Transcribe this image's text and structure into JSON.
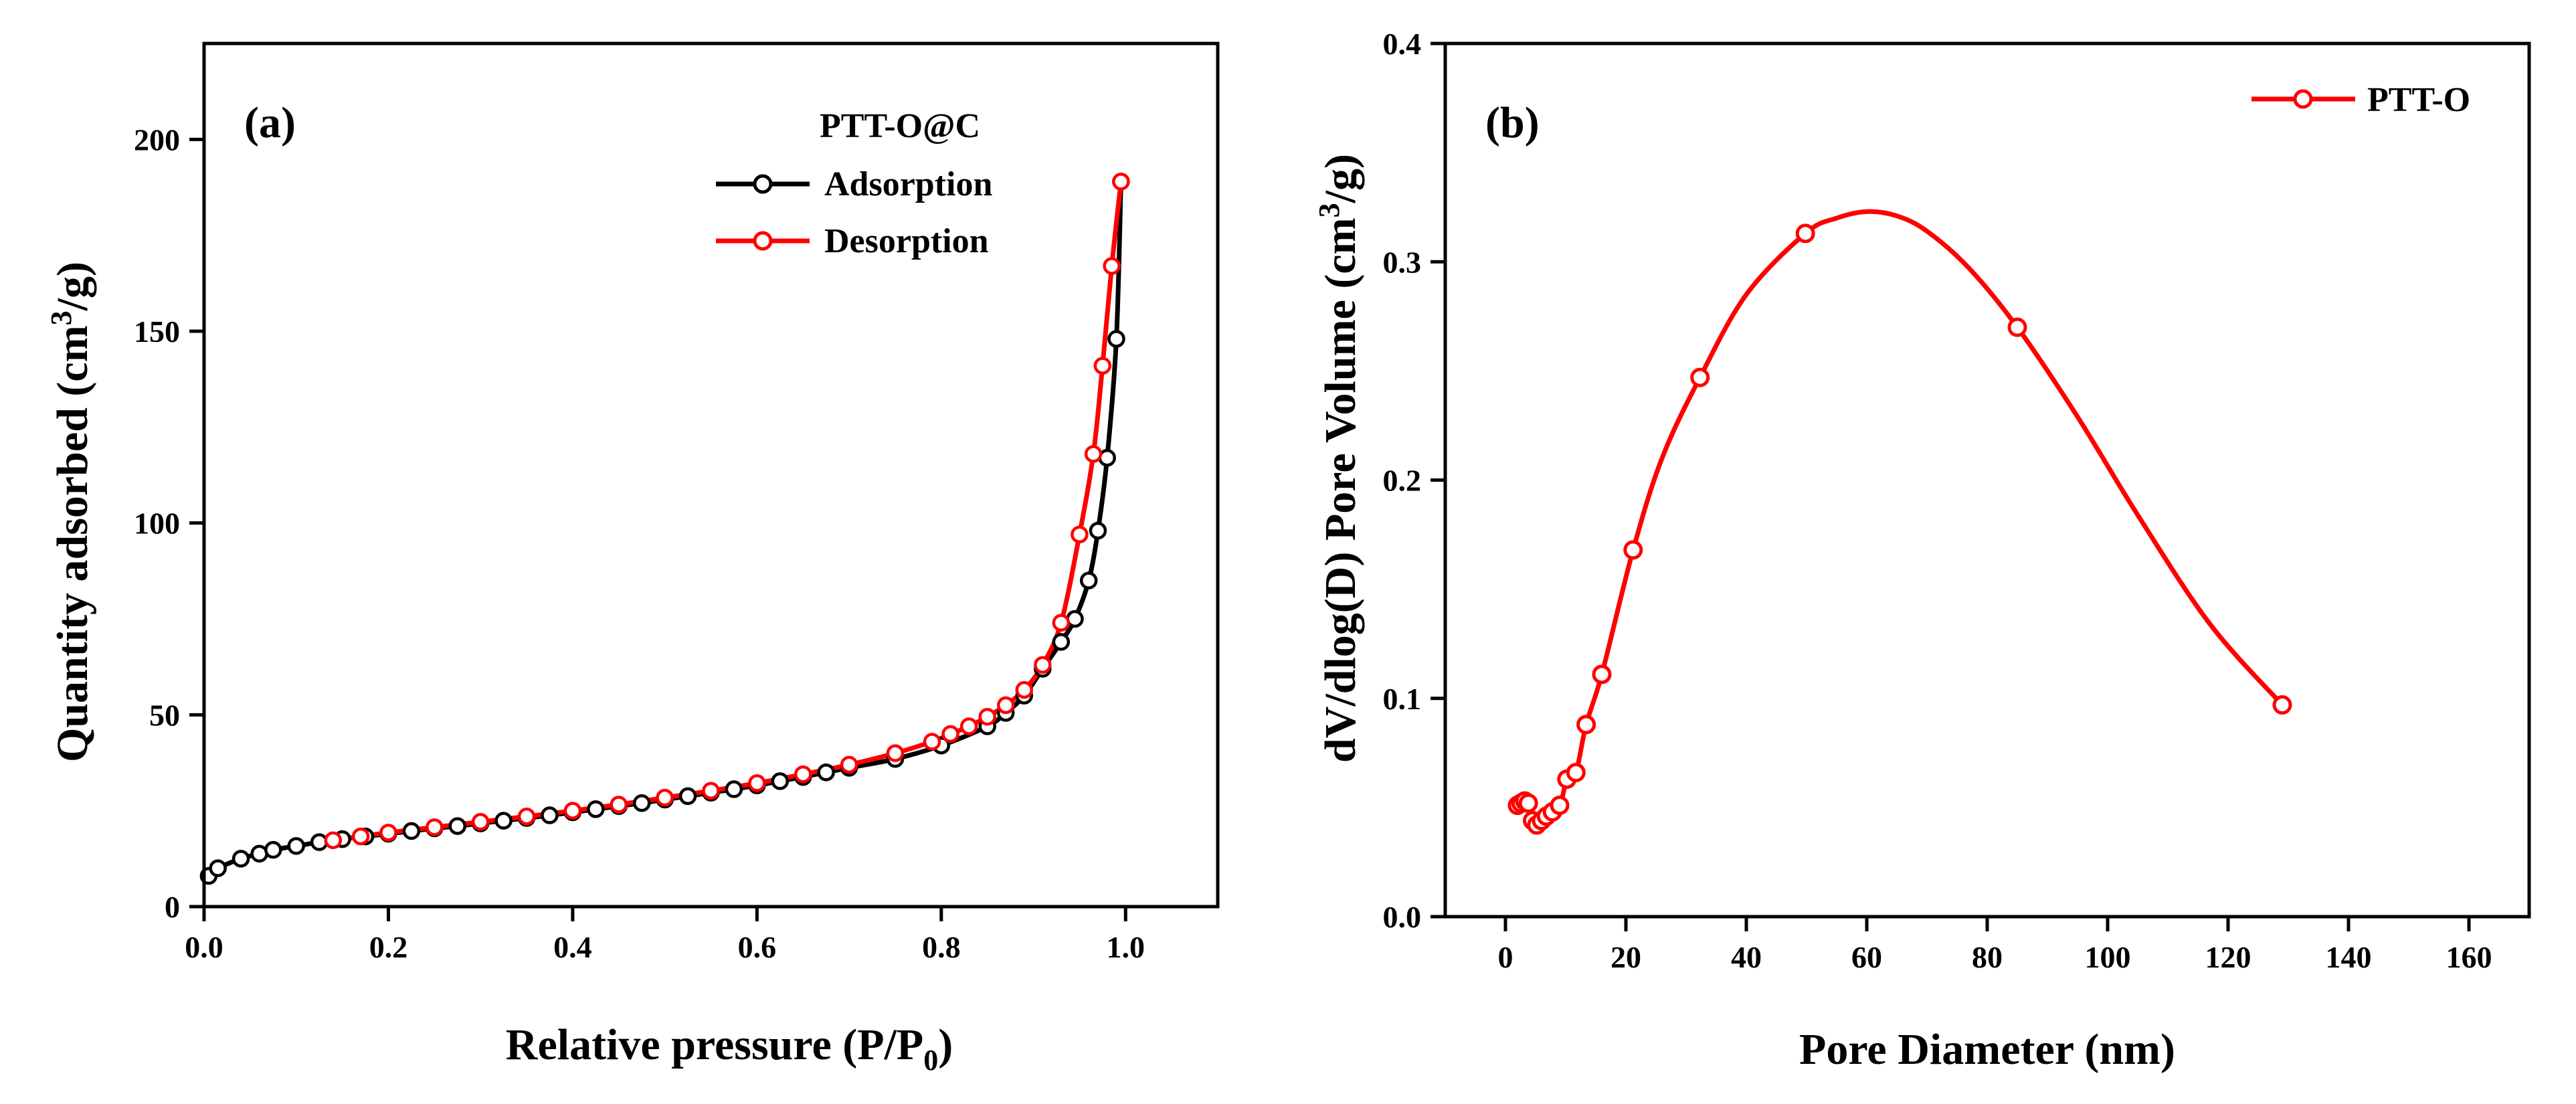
{
  "chart_data": [
    {
      "type": "scatter",
      "panel_label": "(a)",
      "legend_title": "PTT-O@C",
      "xlabel": "Relative pressure (P/P",
      "xlabel_sub": "0",
      "xlabel_tail": ")",
      "ylabel": "Quantity adsorbed (cm",
      "ylabel_sup": "3",
      "ylabel_tail": "/g)",
      "xlim": [
        0.0,
        1.1
      ],
      "ylim": [
        0,
        225
      ],
      "x_ticks": [
        0.0,
        0.2,
        0.4,
        0.6,
        0.8,
        1.0
      ],
      "x_tick_labels": [
        "0.0",
        "0.2",
        "0.4",
        "0.6",
        "0.8",
        "1.0"
      ],
      "y_ticks": [
        0,
        50,
        100,
        150,
        200
      ],
      "y_tick_labels": [
        "0",
        "50",
        "100",
        "150",
        "200"
      ],
      "legend_position": "top-right",
      "series": [
        {
          "name": "Adsorption",
          "color": "#000000",
          "x": [
            0.005,
            0.015,
            0.04,
            0.06,
            0.075,
            0.1,
            0.125,
            0.15,
            0.175,
            0.2,
            0.225,
            0.25,
            0.275,
            0.3,
            0.325,
            0.35,
            0.375,
            0.4,
            0.425,
            0.45,
            0.475,
            0.5,
            0.525,
            0.55,
            0.575,
            0.6,
            0.625,
            0.65,
            0.675,
            0.7,
            0.75,
            0.8,
            0.85,
            0.87,
            0.89,
            0.91,
            0.93,
            0.945,
            0.96,
            0.97,
            0.98,
            0.99,
            0.995
          ],
          "y": [
            8,
            10,
            12.5,
            13.8,
            14.8,
            15.8,
            16.8,
            17.6,
            18.3,
            19.0,
            19.7,
            20.4,
            21.0,
            21.7,
            22.4,
            23.1,
            23.8,
            24.6,
            25.4,
            26.2,
            27.0,
            27.9,
            28.8,
            29.7,
            30.6,
            31.6,
            32.7,
            33.8,
            35.0,
            36.2,
            38.5,
            42.0,
            47.0,
            50.5,
            55.0,
            62.0,
            69.0,
            75.0,
            85.0,
            98.0,
            117.0,
            148.0,
            189.0
          ]
        },
        {
          "name": "Desorption",
          "color": "#ff0000",
          "x": [
            0.995,
            0.985,
            0.975,
            0.965,
            0.95,
            0.93,
            0.91,
            0.89,
            0.87,
            0.85,
            0.83,
            0.81,
            0.79,
            0.75,
            0.7,
            0.65,
            0.6,
            0.55,
            0.5,
            0.45,
            0.4,
            0.35,
            0.3,
            0.25,
            0.2,
            0.17,
            0.14
          ],
          "y": [
            189.0,
            167.0,
            141.0,
            118.0,
            97.0,
            74.0,
            63.0,
            56.5,
            52.5,
            49.5,
            47.0,
            45.0,
            43.0,
            40.0,
            37.0,
            34.5,
            32.2,
            30.2,
            28.4,
            26.6,
            25.0,
            23.5,
            22.1,
            20.7,
            19.3,
            18.3,
            17.3
          ]
        }
      ]
    },
    {
      "type": "line",
      "panel_label": "(b)",
      "xlabel": "Pore Diameter (nm)",
      "ylabel": "dV/dlog(D) Pore Volume (cm",
      "ylabel_sup": "3",
      "ylabel_tail": "/g)",
      "xlim": [
        -10,
        170
      ],
      "ylim": [
        0.0,
        0.4
      ],
      "x_ticks": [
        0,
        20,
        40,
        60,
        80,
        100,
        120,
        140,
        160
      ],
      "x_tick_labels": [
        "0",
        "20",
        "40",
        "60",
        "80",
        "100",
        "120",
        "140",
        "160"
      ],
      "y_ticks": [
        0.0,
        0.1,
        0.2,
        0.3,
        0.4
      ],
      "y_tick_labels": [
        "0.0",
        "0.1",
        "0.2",
        "0.3",
        "0.4"
      ],
      "legend_position": "top-right",
      "series": [
        {
          "name": "PTT-O",
          "color": "#ff0000",
          "marker_x": [
            2.0,
            2.6,
            3.2,
            3.8,
            4.5,
            5.2,
            6.0,
            6.8,
            7.8,
            9.0,
            10.2,
            11.7,
            13.4,
            16.0,
            21.2,
            32.3,
            49.8,
            85.0,
            129.0
          ],
          "marker_y": [
            0.051,
            0.052,
            0.053,
            0.052,
            0.044,
            0.042,
            0.044,
            0.046,
            0.048,
            0.051,
            0.063,
            0.066,
            0.088,
            0.111,
            0.168,
            0.247,
            0.313,
            0.27,
            0.097
          ],
          "line_x": [
            2.0,
            3.2,
            4.5,
            5.2,
            6.8,
            9.0,
            10.2,
            11.7,
            13.4,
            16.0,
            21.2,
            26.0,
            32.3,
            40.0,
            49.8,
            55.0,
            60.0,
            65.0,
            70.0,
            77.0,
            85.0,
            95.0,
            105.0,
            117.0,
            129.0
          ],
          "line_y": [
            0.051,
            0.053,
            0.044,
            0.042,
            0.046,
            0.051,
            0.063,
            0.066,
            0.088,
            0.111,
            0.168,
            0.21,
            0.247,
            0.285,
            0.313,
            0.32,
            0.323,
            0.321,
            0.314,
            0.297,
            0.27,
            0.229,
            0.184,
            0.134,
            0.097
          ]
        }
      ]
    }
  ]
}
